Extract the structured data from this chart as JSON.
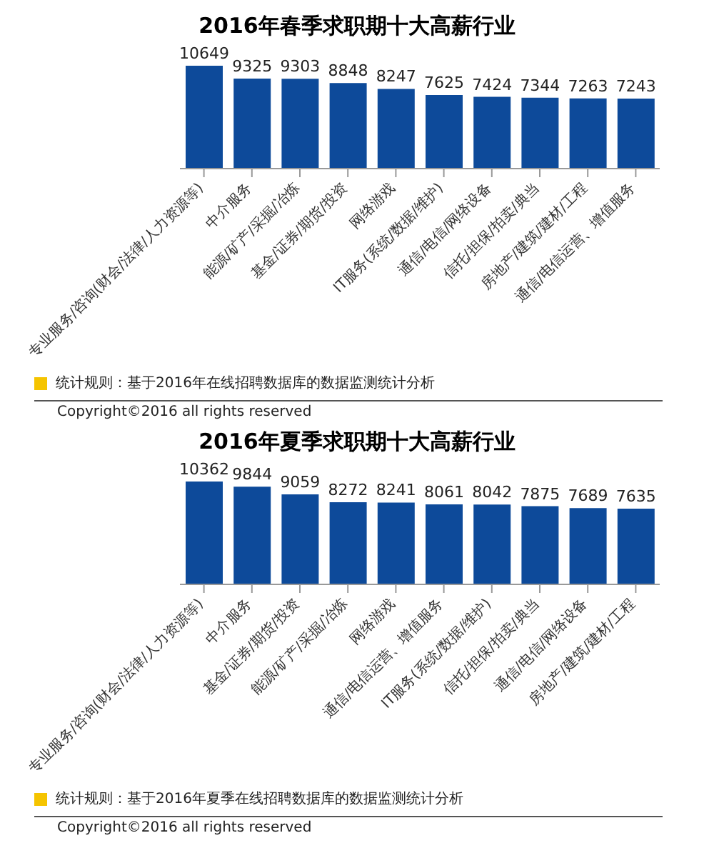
{
  "chart_data": [
    {
      "type": "bar",
      "title": "2016年春季求职期十大高薪行业",
      "categories": [
        "专业服务/咨询(财会/法律/人力资源等)",
        "中介服务",
        "能源/矿产/采掘/冶炼",
        "基金/证券/期货/投资",
        "网络游戏",
        "IT服务(系统/数据/维护)",
        "通信/电信/网络设备",
        "信托/担保/拍卖/典当",
        "房地产/建筑/建材/工程",
        "通信/电信运营、增值服务"
      ],
      "values": [
        10649,
        9325,
        9303,
        8848,
        8247,
        7625,
        7424,
        7344,
        7263,
        7243
      ],
      "color": "#0d4a9a",
      "data_labels": true,
      "annotations": [
        "统计规则：基于2016年在线招聘数据库的数据监测统计分析",
        "Copyright©2016 all rights reserved"
      ]
    },
    {
      "type": "bar",
      "title": "2016年夏季求职期十大高薪行业",
      "categories": [
        "专业服务/咨询(财会/法律/人力资源等)",
        "中介服务",
        "基金/证券/期货/投资",
        "能源/矿产/采掘/冶炼",
        "网络游戏",
        "通信/电信运营、增值服务",
        "IT服务(系统/数据/维护)",
        "信托/担保/拍卖/典当",
        "通信/电信/网络设备",
        "房地产/建筑/建材/工程"
      ],
      "values": [
        10362,
        9844,
        9059,
        8272,
        8241,
        8061,
        8042,
        7875,
        7689,
        7635
      ],
      "color": "#0d4a9a",
      "data_labels": true,
      "annotations": [
        "统计规则：基于2016年夏季在线招聘数据库的数据监测统计分析",
        "Copyright©2016 all rights reserved"
      ]
    }
  ]
}
